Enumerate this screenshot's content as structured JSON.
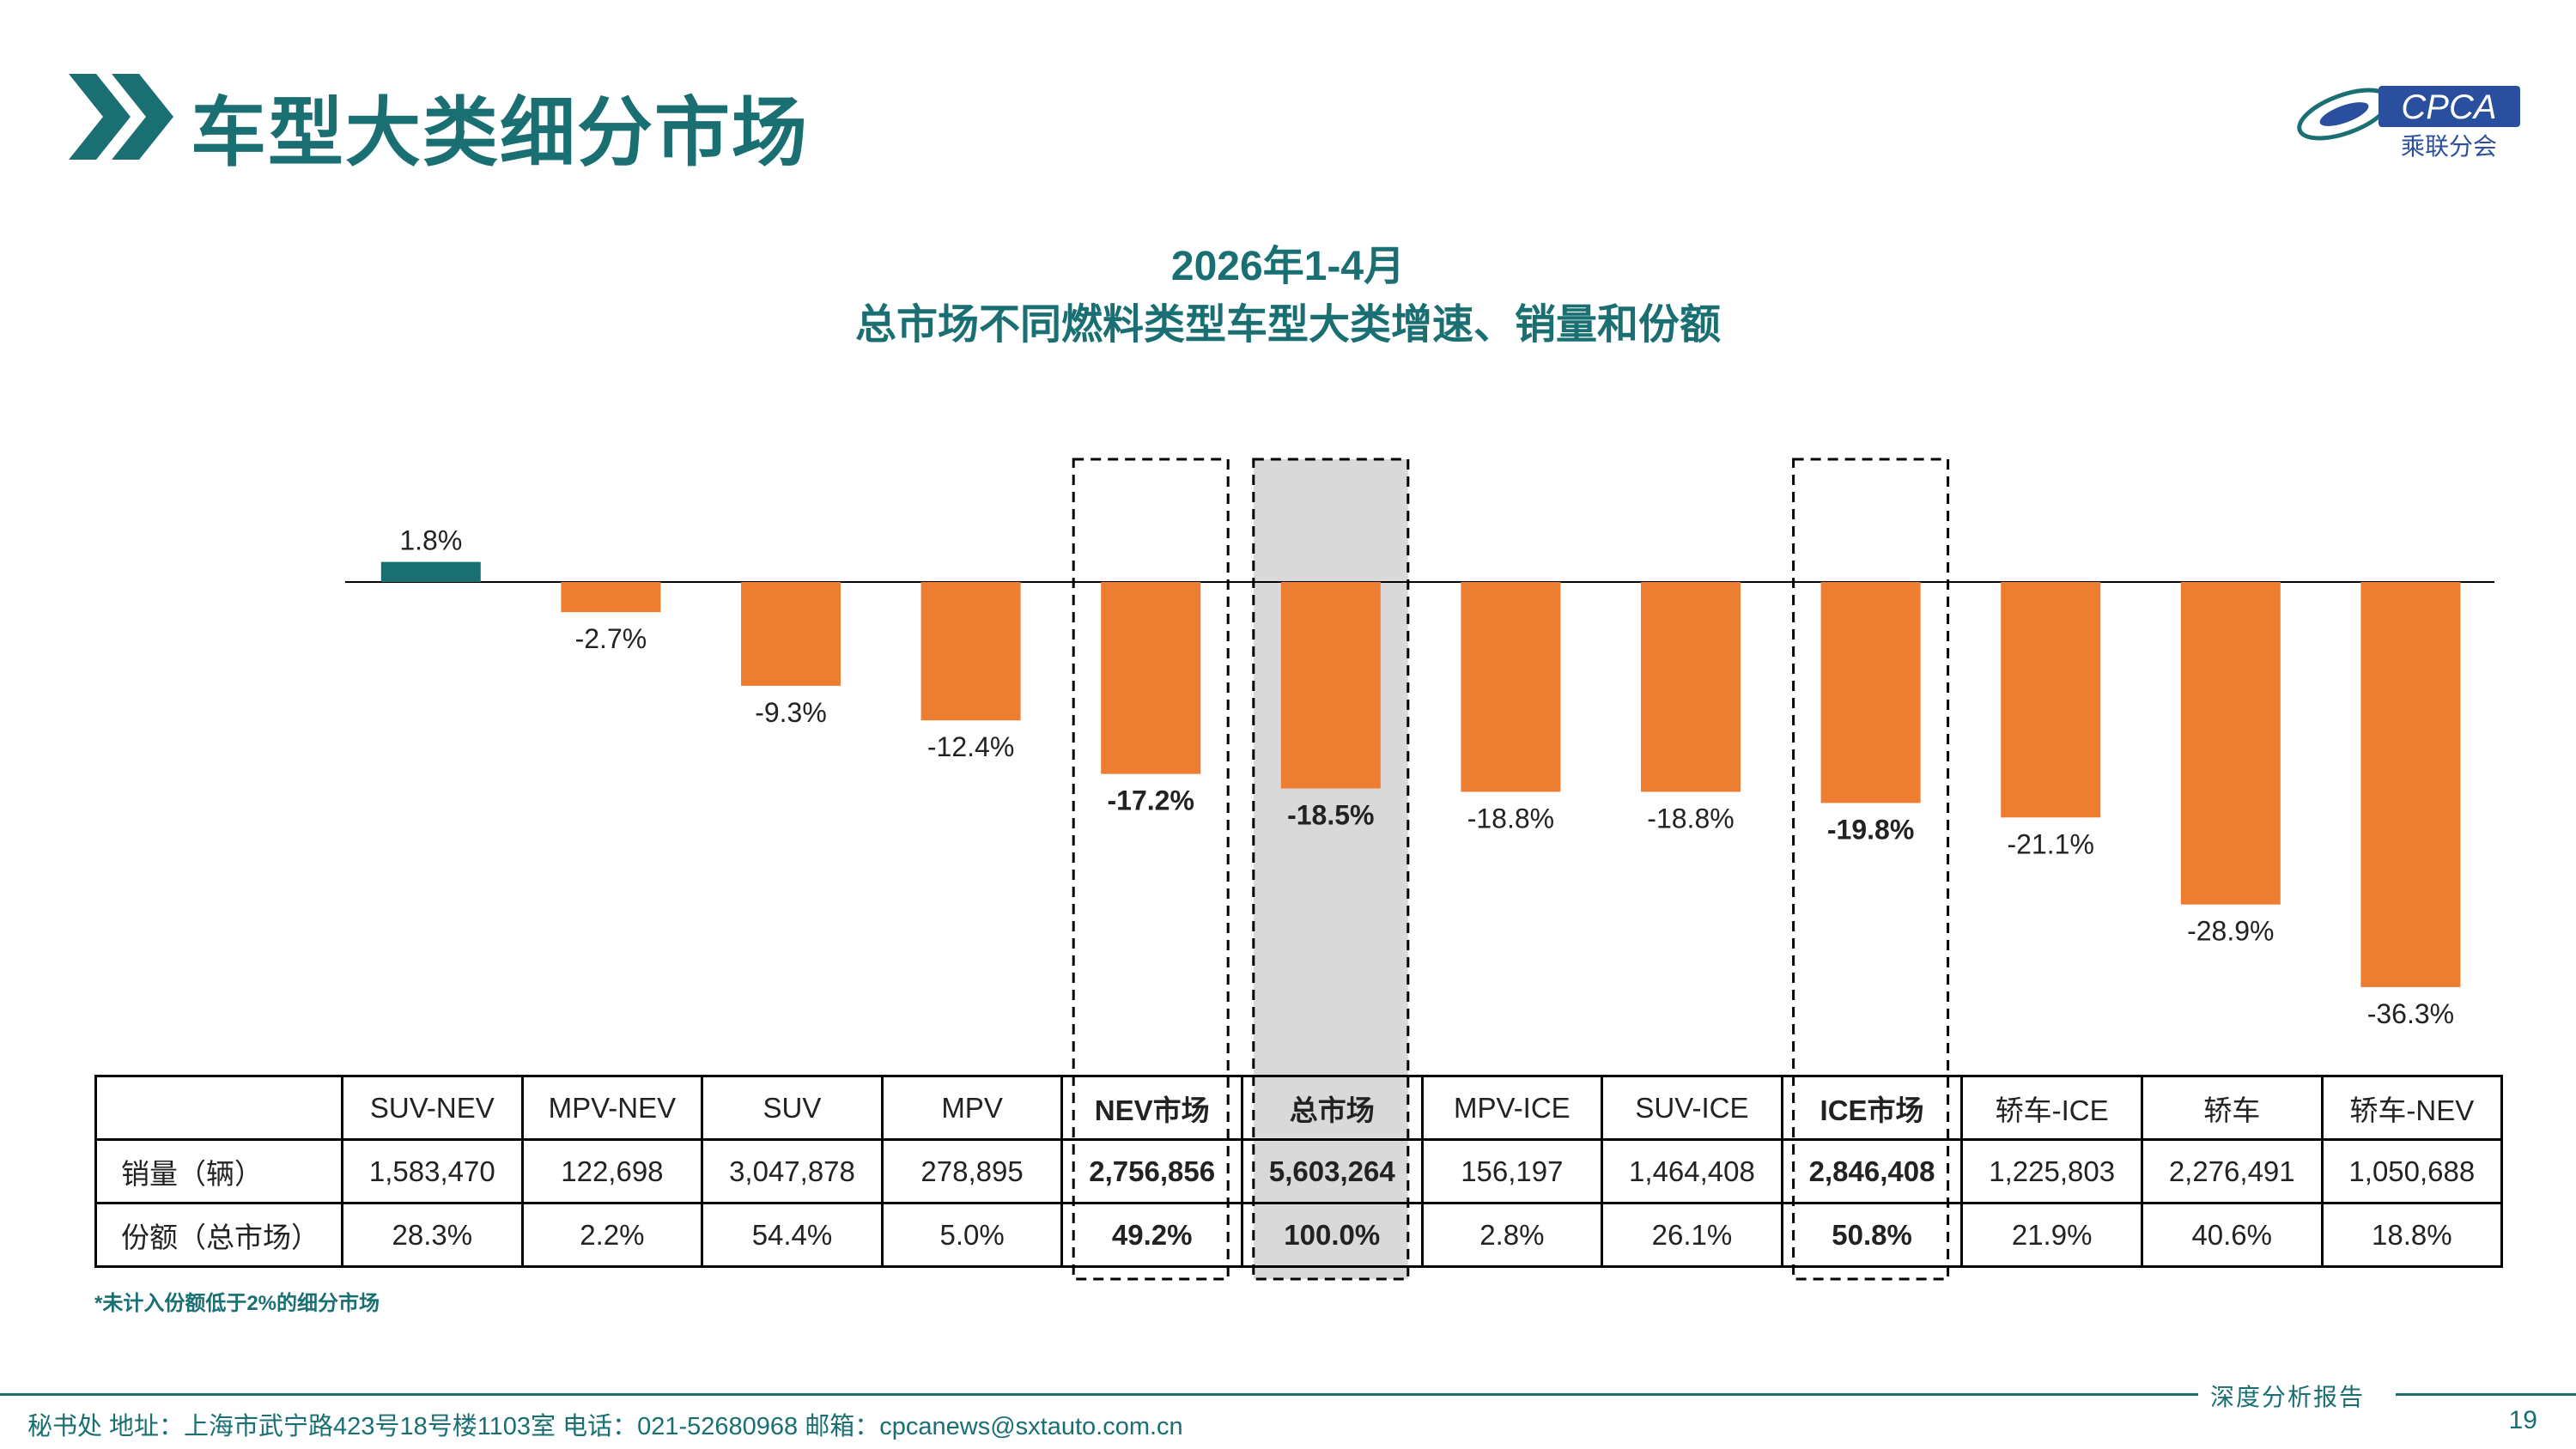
{
  "page": {
    "title": "车型大类细分市场",
    "logo_text": "CPCA",
    "logo_sub": "乘联分会",
    "footnote": "*未计入份额低于2%的细分市场",
    "report_label": "深度分析报告",
    "footer": "秘书处   地址：上海市武宁路423号18号楼1103室  电话：021-52680968   邮箱：cpcanews@sxtauto.com.cn",
    "page_number": "19"
  },
  "colors": {
    "brand": "#1a6f73",
    "bar_negative": "#ed7d31",
    "bar_positive": "#1a6f73",
    "highlight_fill": "#d9d9d9"
  },
  "chart_data": {
    "type": "bar",
    "title": "2026年1-4月",
    "subtitle": "总市场不同燃料类型车型大类增速、销量和份额",
    "categories": [
      "SUV-NEV",
      "MPV-NEV",
      "SUV",
      "MPV",
      "NEV市场",
      "总市场",
      "MPV-ICE",
      "SUV-ICE",
      "ICE市场",
      "轿车-ICE",
      "轿车",
      "轿车-NEV"
    ],
    "values": [
      1.8,
      -2.7,
      -9.3,
      -12.4,
      -17.2,
      -18.5,
      -18.8,
      -18.8,
      -19.8,
      -21.1,
      -28.9,
      -36.3
    ],
    "labels": [
      "1.8%",
      "-2.7%",
      "-9.3%",
      "-12.4%",
      "-17.2%",
      "-18.5%",
      "-18.8%",
      "-18.8%",
      "-19.8%",
      "-21.1%",
      "-28.9%",
      "-36.3%"
    ],
    "highlighted": [
      "NEV市场",
      "总市场",
      "ICE市场"
    ],
    "shaded": [
      "总市场"
    ],
    "unit": "%"
  },
  "table": {
    "rows": [
      {
        "label": "销量（辆）",
        "values": [
          "1,583,470",
          "122,698",
          "3,047,878",
          "278,895",
          "2,756,856",
          "5,603,264",
          "156,197",
          "1,464,408",
          "2,846,408",
          "1,225,803",
          "2,276,491",
          "1,050,688"
        ]
      },
      {
        "label": "份额（总市场）",
        "values": [
          "28.3%",
          "2.2%",
          "54.4%",
          "5.0%",
          "49.2%",
          "100.0%",
          "2.8%",
          "26.1%",
          "50.8%",
          "21.9%",
          "40.6%",
          "18.8%"
        ]
      }
    ]
  }
}
